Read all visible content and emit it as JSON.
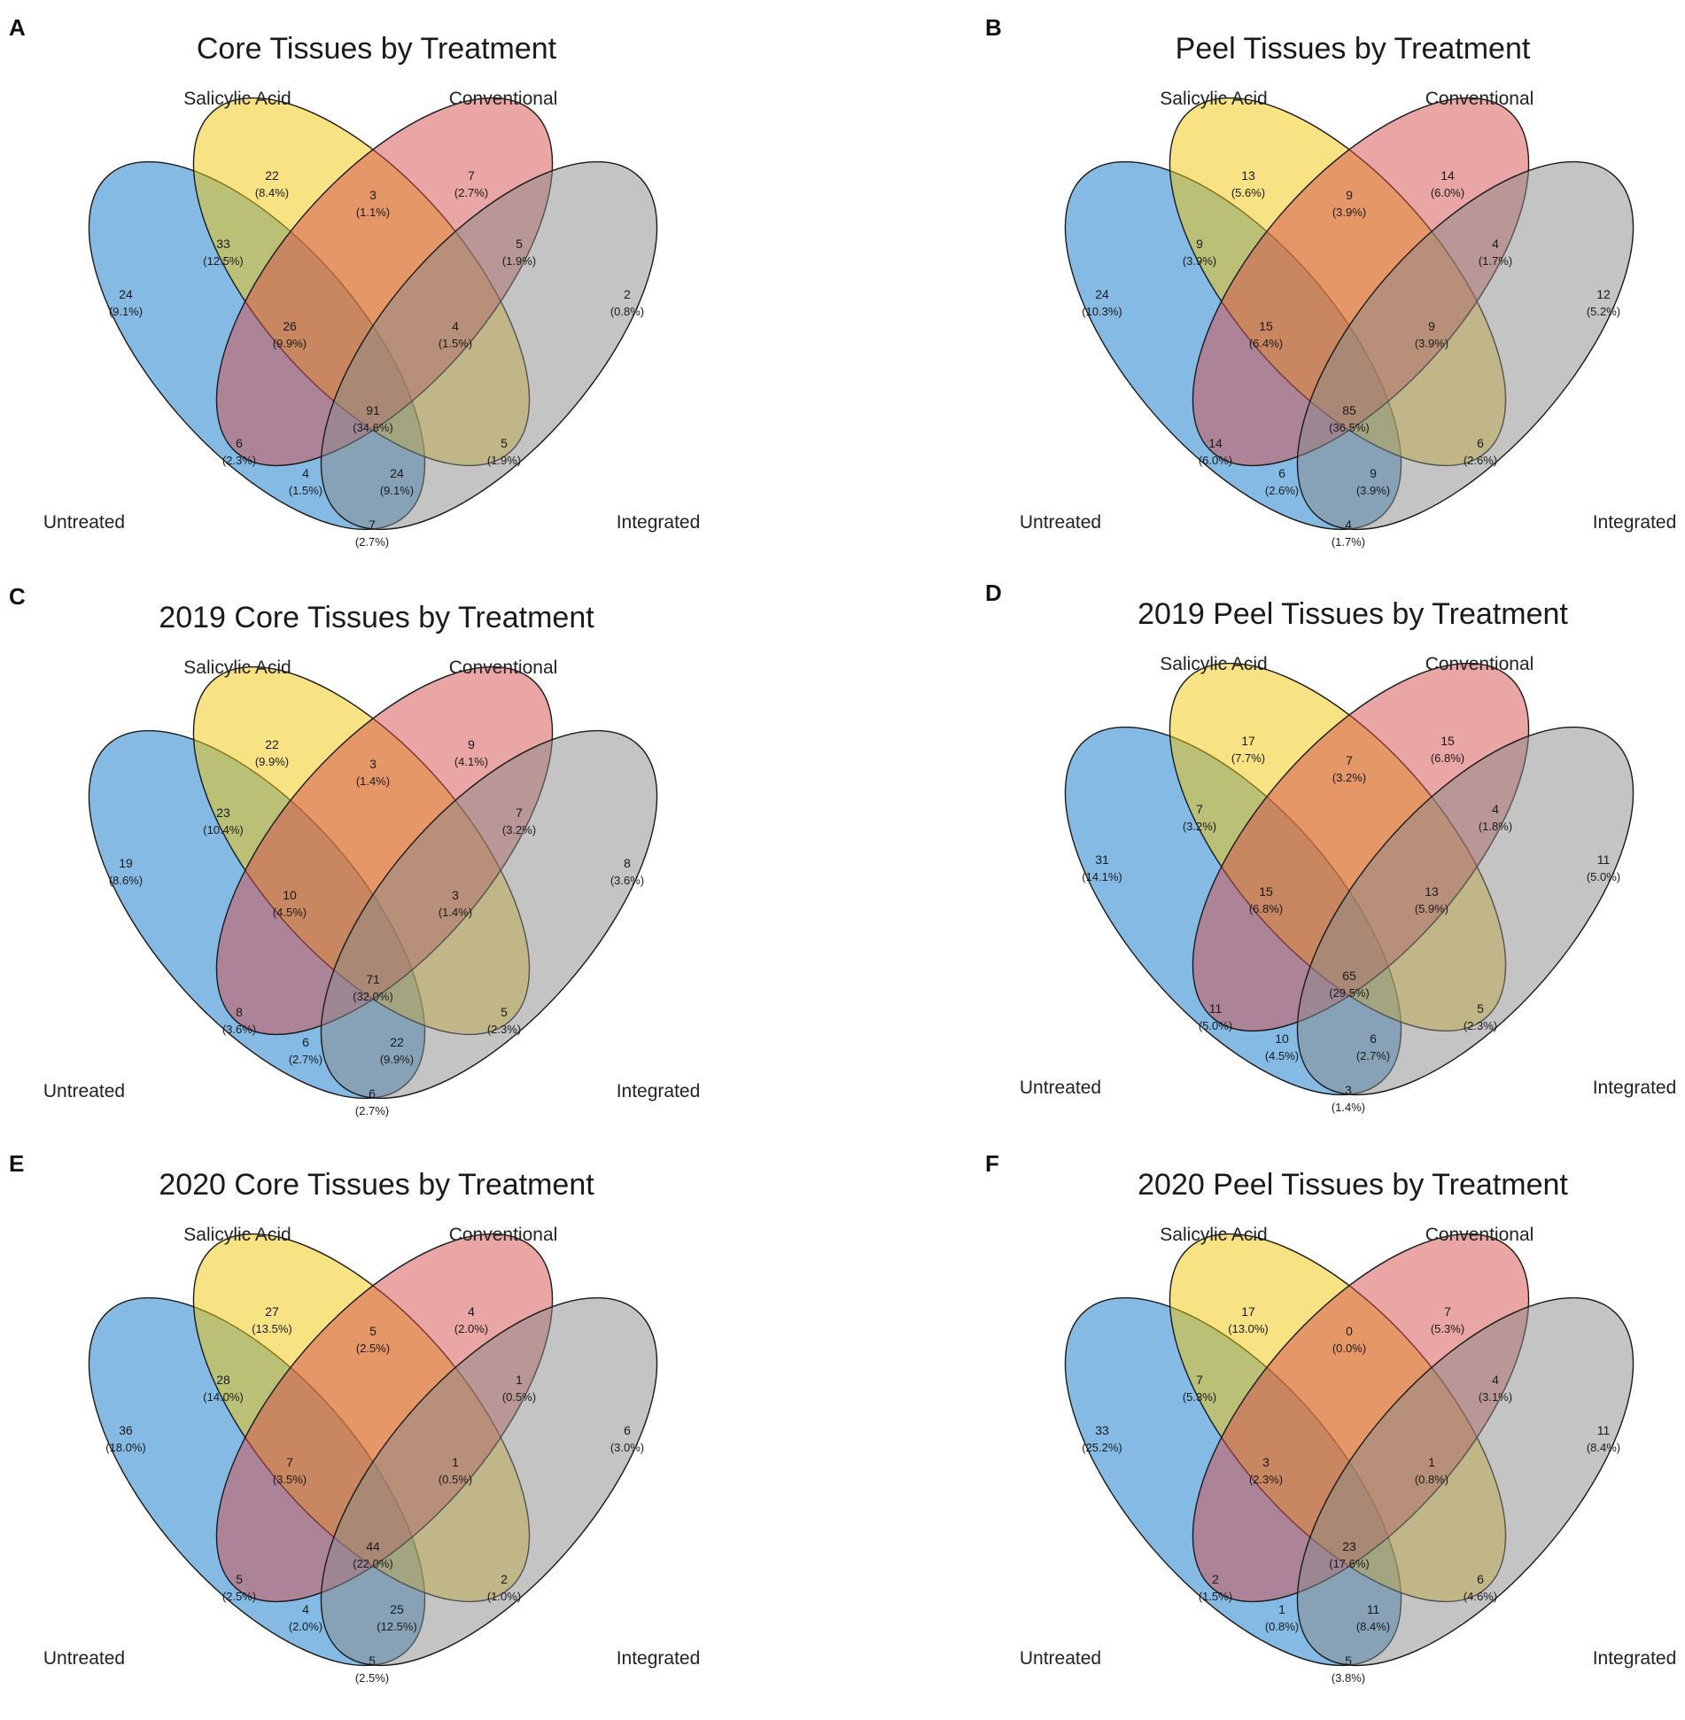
{
  "colors": {
    "untreated": "#0a75c9",
    "salicylic": "#f0c80a",
    "conventional": "#d64b4b",
    "integrated": "#8a8a8a"
  },
  "chart_data": [
    {
      "type": "venn",
      "panel": "A",
      "title": "Core Tissues by Treatment",
      "sets": [
        "Untreated",
        "Salicylic Acid",
        "Conventional",
        "Integrated"
      ],
      "regions": {
        "S": {
          "count": "22",
          "pct": "(8.4%)"
        },
        "C": {
          "count": "7",
          "pct": "(2.7%)"
        },
        "US": {
          "count": "33",
          "pct": "(12.5%)"
        },
        "SC": {
          "count": "3",
          "pct": "(1.1%)"
        },
        "CI": {
          "count": "5",
          "pct": "(1.9%)"
        },
        "U": {
          "count": "24",
          "pct": "(9.1%)"
        },
        "I": {
          "count": "2",
          "pct": "(0.8%)"
        },
        "USC": {
          "count": "26",
          "pct": "(9.9%)"
        },
        "SCI": {
          "count": "4",
          "pct": "(1.5%)"
        },
        "USCI": {
          "count": "91",
          "pct": "(34.6%)"
        },
        "UC": {
          "count": "6",
          "pct": "(2.3%)"
        },
        "SI": {
          "count": "5",
          "pct": "(1.9%)"
        },
        "UCI": {
          "count": "4",
          "pct": "(1.5%)"
        },
        "USI": {
          "count": "24",
          "pct": "(9.1%)"
        },
        "UI": {
          "count": "7",
          "pct": "(2.7%)"
        }
      }
    },
    {
      "type": "venn",
      "panel": "B",
      "title": "Peel Tissues by Treatment",
      "sets": [
        "Untreated",
        "Salicylic Acid",
        "Conventional",
        "Integrated"
      ],
      "regions": {
        "S": {
          "count": "13",
          "pct": "(5.6%)"
        },
        "C": {
          "count": "14",
          "pct": "(6.0%)"
        },
        "US": {
          "count": "9",
          "pct": "(3.9%)"
        },
        "SC": {
          "count": "9",
          "pct": "(3.9%)"
        },
        "CI": {
          "count": "4",
          "pct": "(1.7%)"
        },
        "U": {
          "count": "24",
          "pct": "(10.3%)"
        },
        "I": {
          "count": "12",
          "pct": "(5.2%)"
        },
        "USC": {
          "count": "15",
          "pct": "(6.4%)"
        },
        "SCI": {
          "count": "9",
          "pct": "(3.9%)"
        },
        "USCI": {
          "count": "85",
          "pct": "(36.5%)"
        },
        "UC": {
          "count": "14",
          "pct": "(6.0%)"
        },
        "SI": {
          "count": "6",
          "pct": "(2.6%)"
        },
        "UCI": {
          "count": "6",
          "pct": "(2.6%)"
        },
        "USI": {
          "count": "9",
          "pct": "(3.9%)"
        },
        "UI": {
          "count": "4",
          "pct": "(1.7%)"
        }
      }
    },
    {
      "type": "venn",
      "panel": "C",
      "title": "2019 Core Tissues by Treatment",
      "sets": [
        "Untreated",
        "Salicylic Acid",
        "Conventional",
        "Integrated"
      ],
      "regions": {
        "S": {
          "count": "22",
          "pct": "(9.9%)"
        },
        "C": {
          "count": "9",
          "pct": "(4.1%)"
        },
        "US": {
          "count": "23",
          "pct": "(10.4%)"
        },
        "SC": {
          "count": "3",
          "pct": "(1.4%)"
        },
        "CI": {
          "count": "7",
          "pct": "(3.2%)"
        },
        "U": {
          "count": "19",
          "pct": "(8.6%)"
        },
        "I": {
          "count": "8",
          "pct": "(3.6%)"
        },
        "USC": {
          "count": "10",
          "pct": "(4.5%)"
        },
        "SCI": {
          "count": "3",
          "pct": "(1.4%)"
        },
        "USCI": {
          "count": "71",
          "pct": "(32.0%)"
        },
        "UC": {
          "count": "8",
          "pct": "(3.6%)"
        },
        "SI": {
          "count": "5",
          "pct": "(2.3%)"
        },
        "UCI": {
          "count": "6",
          "pct": "(2.7%)"
        },
        "USI": {
          "count": "22",
          "pct": "(9.9%)"
        },
        "UI": {
          "count": "6",
          "pct": "(2.7%)"
        }
      }
    },
    {
      "type": "venn",
      "panel": "D",
      "title": "2019 Peel Tissues by Treatment",
      "sets": [
        "Untreated",
        "Salicylic Acid",
        "Conventional",
        "Integrated"
      ],
      "regions": {
        "S": {
          "count": "17",
          "pct": "(7.7%)"
        },
        "C": {
          "count": "15",
          "pct": "(6.8%)"
        },
        "US": {
          "count": "7",
          "pct": "(3.2%)"
        },
        "SC": {
          "count": "7",
          "pct": "(3.2%)"
        },
        "CI": {
          "count": "4",
          "pct": "(1.8%)"
        },
        "U": {
          "count": "31",
          "pct": "(14.1%)"
        },
        "I": {
          "count": "11",
          "pct": "(5.0%)"
        },
        "USC": {
          "count": "15",
          "pct": "(6.8%)"
        },
        "SCI": {
          "count": "13",
          "pct": "(5.9%)"
        },
        "USCI": {
          "count": "65",
          "pct": "(29.5%)"
        },
        "UC": {
          "count": "11",
          "pct": "(5.0%)"
        },
        "SI": {
          "count": "5",
          "pct": "(2.3%)"
        },
        "UCI": {
          "count": "10",
          "pct": "(4.5%)"
        },
        "USI": {
          "count": "6",
          "pct": "(2.7%)"
        },
        "UI": {
          "count": "3",
          "pct": "(1.4%)"
        }
      }
    },
    {
      "type": "venn",
      "panel": "E",
      "title": "2020 Core Tissues by Treatment",
      "sets": [
        "Untreated",
        "Salicylic Acid",
        "Conventional",
        "Integrated"
      ],
      "regions": {
        "S": {
          "count": "27",
          "pct": "(13.5%)"
        },
        "C": {
          "count": "4",
          "pct": "(2.0%)"
        },
        "US": {
          "count": "28",
          "pct": "(14.0%)"
        },
        "SC": {
          "count": "5",
          "pct": "(2.5%)"
        },
        "CI": {
          "count": "1",
          "pct": "(0.5%)"
        },
        "U": {
          "count": "36",
          "pct": "(18.0%)"
        },
        "I": {
          "count": "6",
          "pct": "(3.0%)"
        },
        "USC": {
          "count": "7",
          "pct": "(3.5%)"
        },
        "SCI": {
          "count": "1",
          "pct": "(0.5%)"
        },
        "USCI": {
          "count": "44",
          "pct": "(22.0%)"
        },
        "UC": {
          "count": "5",
          "pct": "(2.5%)"
        },
        "SI": {
          "count": "2",
          "pct": "(1.0%)"
        },
        "UCI": {
          "count": "4",
          "pct": "(2.0%)"
        },
        "USI": {
          "count": "25",
          "pct": "(12.5%)"
        },
        "UI": {
          "count": "5",
          "pct": "(2.5%)"
        }
      }
    },
    {
      "type": "venn",
      "panel": "F",
      "title": "2020 Peel Tissues by Treatment",
      "sets": [
        "Untreated",
        "Salicylic Acid",
        "Conventional",
        "Integrated"
      ],
      "regions": {
        "S": {
          "count": "17",
          "pct": "(13.0%)"
        },
        "C": {
          "count": "7",
          "pct": "(5.3%)"
        },
        "US": {
          "count": "7",
          "pct": "(5.3%)"
        },
        "SC": {
          "count": "0",
          "pct": "(0.0%)"
        },
        "CI": {
          "count": "4",
          "pct": "(3.1%)"
        },
        "U": {
          "count": "33",
          "pct": "(25.2%)"
        },
        "I": {
          "count": "11",
          "pct": "(8.4%)"
        },
        "USC": {
          "count": "3",
          "pct": "(2.3%)"
        },
        "SCI": {
          "count": "1",
          "pct": "(0.8%)"
        },
        "USCI": {
          "count": "23",
          "pct": "(17.6%)"
        },
        "UC": {
          "count": "2",
          "pct": "(1.5%)"
        },
        "SI": {
          "count": "6",
          "pct": "(4.6%)"
        },
        "UCI": {
          "count": "1",
          "pct": "(0.8%)"
        },
        "USI": {
          "count": "11",
          "pct": "(8.4%)"
        },
        "UI": {
          "count": "5",
          "pct": "(3.8%)"
        }
      }
    }
  ]
}
